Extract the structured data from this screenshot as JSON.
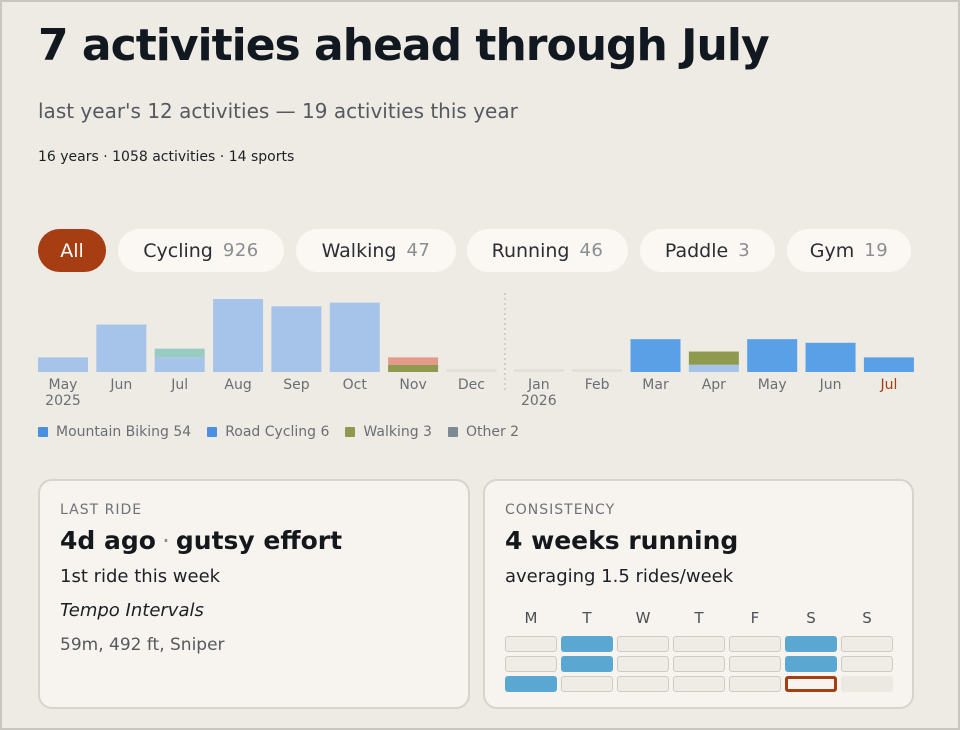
{
  "header": {
    "title": "7 activities ahead through July",
    "subtitle": "last year's 12 activities — 19 activities this year",
    "meta": "16 years · 1058 activities · 14 sports"
  },
  "filters": [
    {
      "label": "All",
      "count": "",
      "active": true
    },
    {
      "label": "Cycling",
      "count": "926",
      "active": false
    },
    {
      "label": "Walking",
      "count": "47",
      "active": false
    },
    {
      "label": "Running",
      "count": "46",
      "active": false
    },
    {
      "label": "Paddle",
      "count": "3",
      "active": false
    },
    {
      "label": "Gym",
      "count": "19",
      "active": false
    }
  ],
  "colors": {
    "accent": "#a63d13",
    "mountain_biking": "#5fa0e0",
    "road_cycling": "#4a90e2",
    "walking": "#8f9a4e",
    "other": "#7b8a95"
  },
  "chart_data": {
    "type": "bar",
    "categories": [
      "May",
      "Jun",
      "Jul",
      "Aug",
      "Sep",
      "Oct",
      "Nov",
      "Dec",
      "Jan",
      "Feb",
      "Mar",
      "Apr",
      "May",
      "Jun",
      "Jul"
    ],
    "year_labels": {
      "0": "2025",
      "8": "2026"
    },
    "highlight_index": 14,
    "series": [
      {
        "name": "Mountain Biking",
        "values": [
          2,
          6.5,
          2,
          10,
          9,
          9.5,
          0,
          0,
          0,
          0,
          0,
          1,
          0,
          0,
          0
        ]
      },
      {
        "name": "Road Cycling",
        "values": [
          0,
          0,
          0,
          0,
          0,
          0,
          0,
          0,
          0,
          0,
          4.5,
          0,
          4.5,
          4,
          2
        ]
      },
      {
        "name": "Walking",
        "values": [
          0,
          0,
          0,
          0,
          0,
          0,
          1,
          0,
          0,
          0,
          0,
          1.8,
          0,
          0,
          0
        ]
      },
      {
        "name": "Other",
        "values": [
          0,
          0,
          1.2,
          0,
          0,
          0,
          1,
          0,
          0,
          0,
          0,
          0,
          0,
          0,
          0
        ]
      }
    ],
    "ylim": [
      0,
      10
    ]
  },
  "legend": [
    {
      "label": "Mountain Biking 54",
      "color": "#4a90e2"
    },
    {
      "label": "Road Cycling 6",
      "color": "#4a90e2"
    },
    {
      "label": "Walking 3",
      "color": "#8f9a4e"
    },
    {
      "label": "Other 2",
      "color": "#7b8a95"
    }
  ],
  "last_ride": {
    "eyebrow": "LAST RIDE",
    "when": "4d ago",
    "effort": "gutsy effort",
    "count_line": "1st ride this week",
    "name": "Tempo Intervals",
    "details": "59m, 492 ft, Sniper"
  },
  "consistency": {
    "eyebrow": "CONSISTENCY",
    "headline": "4 weeks running",
    "subline": "averaging 1.5 rides/week",
    "days": [
      "M",
      "T",
      "W",
      "T",
      "F",
      "S",
      "S"
    ],
    "weeks": [
      [
        "empty",
        "active",
        "empty",
        "empty",
        "empty",
        "active",
        "empty"
      ],
      [
        "empty",
        "active",
        "empty",
        "empty",
        "empty",
        "active",
        "empty"
      ],
      [
        "active",
        "empty",
        "empty",
        "empty",
        "empty",
        "today",
        "future"
      ]
    ]
  }
}
